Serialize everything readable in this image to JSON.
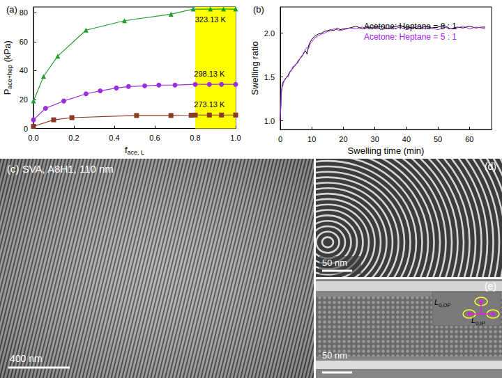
{
  "chart_data": [
    {
      "type": "line",
      "title": "(a)",
      "xlabel": {
        "text": "f",
        "sub": "ace, L"
      },
      "ylabel": {
        "text": "P",
        "sub": "ace+hep",
        "after": " (kPa)"
      },
      "xlim": [
        0,
        1
      ],
      "xticks": [
        {
          "value": 0,
          "label": "0.0"
        },
        0.2,
        0.4,
        0.6,
        0.8,
        {
          "value": 1,
          "label": "1.0"
        }
      ],
      "ylim": [
        0,
        84
      ],
      "yticks": [
        0,
        20,
        40,
        60,
        80
      ],
      "grid": false,
      "shaded_region": {
        "x": [
          0.8,
          1.0
        ],
        "color": "#ffff00"
      },
      "series": [
        {
          "name": "323.13 K",
          "color": "#1f9e2c",
          "marker": "triangle",
          "line_style": "solid",
          "x": [
            0,
            0.05,
            0.12,
            0.26,
            0.45,
            0.68,
            0.79,
            0.875,
            0.94,
            1.0
          ],
          "values": [
            19,
            36,
            50,
            68,
            74.5,
            79,
            82.5,
            82.5,
            82.5,
            82.5
          ]
        },
        {
          "name": "298.13 K",
          "color": "#9b2fe0",
          "marker": "circle",
          "line_style": "solid",
          "x": [
            0,
            0.06,
            0.15,
            0.26,
            0.33,
            0.41,
            0.47,
            0.55,
            0.62,
            0.7,
            0.8,
            0.87,
            0.93,
            1.0
          ],
          "values": [
            6,
            14,
            19,
            24,
            26,
            28,
            29,
            29.5,
            30,
            30,
            30.5,
            30.5,
            30.5,
            30.5
          ]
        },
        {
          "name": "273.13 K",
          "color": "#8b3a24",
          "marker": "square",
          "line_style": "solid",
          "x": [
            0,
            0.1,
            0.19,
            0.51,
            0.68,
            0.78,
            0.8,
            0.87,
            0.93,
            1.0
          ],
          "values": [
            1.5,
            6,
            7.5,
            9,
            9,
            9.2,
            9.3,
            9.3,
            9.3,
            9.3
          ]
        }
      ]
    },
    {
      "type": "line",
      "title": "(b)",
      "xlabel": "Swelling time (min)",
      "ylabel": "Swelling ratio",
      "xlim": [
        0,
        67
      ],
      "xticks": [
        0,
        10,
        20,
        30,
        40,
        50,
        60
      ],
      "ylim": [
        0.9,
        2.3
      ],
      "yticks": [
        {
          "value": 1,
          "label": "1.0"
        },
        1.5,
        {
          "value": 2,
          "label": "2.0"
        }
      ],
      "grid": false,
      "legend": "upper right",
      "x": [
        0,
        0.3,
        0.6,
        1,
        1.5,
        2,
        2.5,
        3,
        3.5,
        4,
        4.5,
        5,
        5.5,
        6,
        6.5,
        7,
        7.5,
        8,
        8.5,
        9,
        9.5,
        10,
        11,
        12,
        13,
        14,
        15,
        16,
        17,
        18,
        19,
        20,
        22,
        24,
        26,
        28,
        30,
        32,
        34,
        36,
        38,
        40,
        42,
        44,
        46,
        48,
        50,
        52,
        54,
        56,
        58,
        60,
        62,
        64,
        65
      ],
      "series": [
        {
          "name": "Acetone: Heptane = 8 : 1",
          "color": "#000000",
          "marker": "none",
          "line_style": "solid",
          "values": [
            1.0,
            1.3,
            1.42,
            1.45,
            1.47,
            1.5,
            1.52,
            1.56,
            1.58,
            1.6,
            1.63,
            1.65,
            1.66,
            1.7,
            1.72,
            1.74,
            1.78,
            1.8,
            1.76,
            1.86,
            1.9,
            1.93,
            1.97,
            1.99,
            2.0,
            2.02,
            2.03,
            2.04,
            2.03,
            2.06,
            2.04,
            2.05,
            2.06,
            2.08,
            2.05,
            2.07,
            2.06,
            2.08,
            2.05,
            2.07,
            2.09,
            2.06,
            2.07,
            2.05,
            2.08,
            2.06,
            2.07,
            2.09,
            2.05,
            2.07,
            2.06,
            2.08,
            2.06,
            2.07,
            2.07
          ]
        },
        {
          "name": "Acetone: Heptane = 5 : 1",
          "color": "#a020f0",
          "marker": "none",
          "line_style": "solid",
          "values": [
            1.0,
            1.32,
            1.38,
            1.43,
            1.48,
            1.5,
            1.5,
            1.55,
            1.57,
            1.62,
            1.62,
            1.64,
            1.68,
            1.69,
            1.73,
            1.75,
            1.77,
            1.82,
            1.84,
            1.83,
            1.88,
            1.9,
            1.95,
            1.97,
            1.99,
            2.0,
            2.02,
            2.03,
            2.05,
            2.04,
            2.03,
            2.04,
            2.06,
            2.05,
            2.07,
            2.05,
            2.08,
            2.04,
            2.06,
            2.05,
            2.07,
            2.04,
            2.06,
            2.08,
            2.05,
            2.06,
            2.04,
            2.07,
            2.05,
            2.06,
            2.08,
            2.05,
            2.07,
            2.06,
            2.05
          ]
        }
      ]
    }
  ],
  "images": [
    {
      "title": "(c) SVA, A8H1, 110 nm",
      "scale_bar": "400 nm"
    },
    {
      "title": "(d)",
      "scale_bar": "50 nm"
    },
    {
      "title": "(e)",
      "scale_bar": "50 nm",
      "inset_labels": [
        {
          "text": "L",
          "sub": "0,OP"
        },
        {
          "text": "L",
          "sub": "0,IP"
        }
      ]
    }
  ]
}
